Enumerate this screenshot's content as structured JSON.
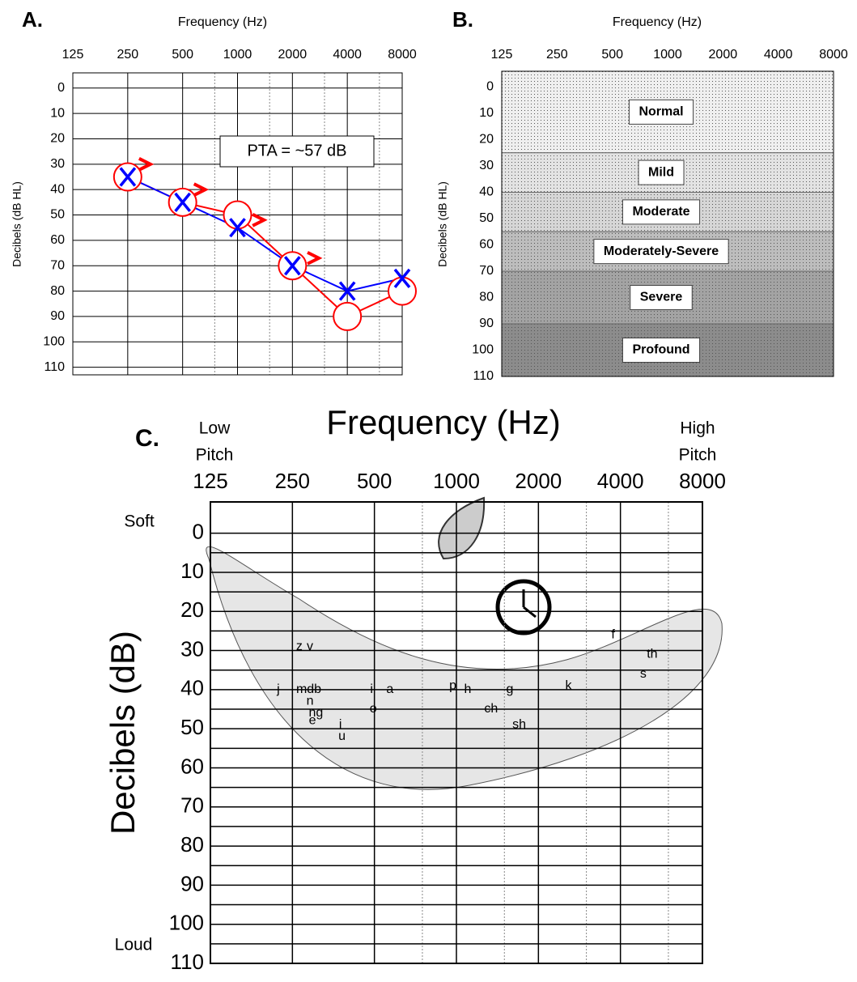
{
  "chart_data": [
    {
      "type": "line",
      "panel": "A.",
      "title": "Frequency (Hz)",
      "y_label": "Decibels (dB HL)",
      "xscale": "log",
      "xlim": [
        125,
        8000
      ],
      "ylim": [
        -6,
        113
      ],
      "y_inverted": true,
      "xticks": [
        125,
        250,
        500,
        1000,
        2000,
        4000,
        8000
      ],
      "minor_xticks": [
        750,
        1500,
        3000,
        6000
      ],
      "yticks": [
        0,
        10,
        20,
        30,
        40,
        50,
        60,
        70,
        80,
        90,
        100,
        110
      ],
      "grid": true,
      "x": [
        250,
        500,
        1000,
        2000,
        4000,
        8000
      ],
      "series": [
        {
          "marker": "x",
          "color": "#0000ff",
          "values": [
            35,
            45,
            55,
            70,
            80,
            75
          ]
        },
        {
          "marker": "o",
          "color": "#ff0000",
          "values": [
            35,
            45,
            50,
            70,
            90,
            80
          ]
        },
        {
          "marker": ">",
          "color": "#ff0000",
          "x": [
            310,
            620,
            1300,
            2600
          ],
          "values": [
            30,
            40,
            52,
            67
          ]
        }
      ],
      "annotation": "PTA = ~57 dB"
    },
    {
      "type": "bands",
      "panel": "B.",
      "title": "Frequency (Hz)",
      "y_label": "Decibels (dB HL)",
      "xscale": "log",
      "xlim": [
        125,
        8000
      ],
      "ylim": [
        -6,
        110
      ],
      "y_inverted": true,
      "xticks": [
        125,
        250,
        500,
        1000,
        2000,
        4000,
        8000
      ],
      "yticks": [
        0,
        10,
        20,
        30,
        40,
        50,
        60,
        70,
        80,
        90,
        100,
        110
      ],
      "bands": [
        {
          "label": "Normal",
          "from": -6,
          "to": 25,
          "color": "#efefef"
        },
        {
          "label": "Mild",
          "from": 25,
          "to": 40,
          "color": "#e3e3e3"
        },
        {
          "label": "Moderate",
          "from": 40,
          "to": 55,
          "color": "#d6d6d6"
        },
        {
          "label": "Moderately-Severe",
          "from": 55,
          "to": 70,
          "color": "#bdbdbd"
        },
        {
          "label": "Severe",
          "from": 70,
          "to": 90,
          "color": "#a3a3a3"
        },
        {
          "label": "Profound",
          "from": 90,
          "to": 110,
          "color": "#8c8c8c"
        }
      ]
    },
    {
      "type": "sounds",
      "panel": "C.",
      "title": "Frequency (Hz)",
      "y_label": "Decibels (dB)",
      "low_label": [
        "Low",
        "Pitch"
      ],
      "high_label": [
        "High",
        "Pitch"
      ],
      "soft_label": "Soft",
      "loud_label": "Loud",
      "xscale": "log",
      "xlim": [
        125,
        8000
      ],
      "ylim": [
        -8,
        110
      ],
      "y_inverted": true,
      "xticks": [
        125,
        250,
        500,
        1000,
        2000,
        4000,
        8000
      ],
      "minor_xticks": [
        750,
        1500,
        3000,
        6000
      ],
      "yticks": [
        0,
        10,
        20,
        30,
        40,
        50,
        60,
        70,
        80,
        90,
        100,
        110
      ],
      "minor_yticks": [
        5,
        15,
        25,
        35,
        45,
        55,
        65,
        75,
        85,
        95,
        105
      ],
      "grid": true,
      "phonemes": [
        {
          "text": "z",
          "x": 265,
          "y": 29
        },
        {
          "text": "v",
          "x": 290,
          "y": 29
        },
        {
          "text": "j",
          "x": 222,
          "y": 40
        },
        {
          "text": "mdb",
          "x": 287,
          "y": 40
        },
        {
          "text": "n",
          "x": 290,
          "y": 43
        },
        {
          "text": "ng",
          "x": 305,
          "y": 46
        },
        {
          "text": "e",
          "x": 296,
          "y": 48
        },
        {
          "text": "i",
          "x": 375,
          "y": 49
        },
        {
          "text": "u",
          "x": 380,
          "y": 52
        },
        {
          "text": "i",
          "x": 488,
          "y": 40
        },
        {
          "text": "a",
          "x": 570,
          "y": 40
        },
        {
          "text": "o",
          "x": 495,
          "y": 45
        },
        {
          "text": "p",
          "x": 970,
          "y": 39
        },
        {
          "text": "h",
          "x": 1100,
          "y": 40
        },
        {
          "text": "ch",
          "x": 1340,
          "y": 45
        },
        {
          "text": "g",
          "x": 1570,
          "y": 40
        },
        {
          "text": "sh",
          "x": 1700,
          "y": 49
        },
        {
          "text": "k",
          "x": 2580,
          "y": 39
        },
        {
          "text": "f",
          "x": 3760,
          "y": 26
        },
        {
          "text": "th",
          "x": 5230,
          "y": 31
        },
        {
          "text": "s",
          "x": 4850,
          "y": 36
        }
      ]
    }
  ]
}
